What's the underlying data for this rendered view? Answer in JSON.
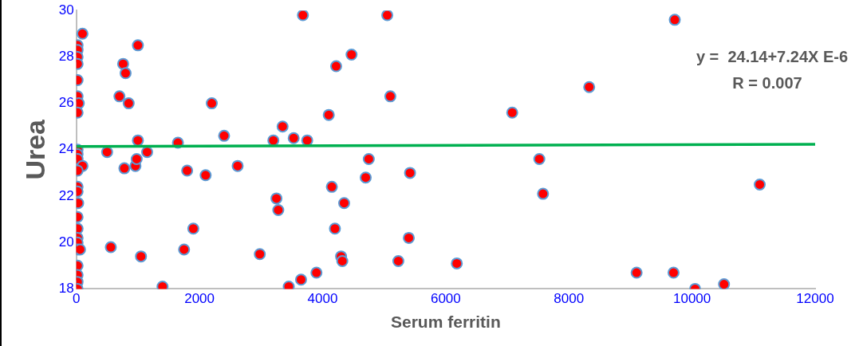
{
  "chart_data": {
    "type": "scatter",
    "xlabel": "Serum ferritin",
    "ylabel": "Urea",
    "xlim": [
      0,
      12000
    ],
    "ylim": [
      18,
      30
    ],
    "xticks": [
      0,
      2000,
      4000,
      6000,
      8000,
      10000,
      12000
    ],
    "yticks": [
      18,
      20,
      22,
      24,
      26,
      28,
      30
    ],
    "grid": false,
    "legend": false,
    "marker": "circle",
    "annotations": [
      "y =  24.14+7.24X E-6",
      "R = 0.007"
    ],
    "series": [
      {
        "color": "#ff0000",
        "x": [
          100,
          20,
          20,
          20,
          20,
          20,
          20,
          40,
          20,
          20,
          20,
          20,
          100,
          20,
          20,
          20,
          30,
          20,
          20,
          20,
          20,
          20,
          60,
          20,
          20,
          20,
          20,
          500,
          560,
          700,
          760,
          800,
          850,
          780,
          1000,
          960,
          980,
          1000,
          1050,
          1150,
          1400,
          1650,
          1750,
          1800,
          1900,
          2100,
          2200,
          2400,
          2620,
          2980,
          3200,
          3250,
          3280,
          3350,
          3450,
          3530,
          3650,
          3680,
          3750,
          3900,
          4100,
          4150,
          4200,
          4220,
          4300,
          4320,
          4350,
          4470,
          4700,
          4750,
          5050,
          5100,
          5230,
          5400,
          5420,
          6180,
          7080,
          7520,
          7580,
          8330,
          9100,
          9700,
          9720,
          10050,
          10520,
          11100
        ],
        "values": [
          29.0,
          28.5,
          28.3,
          28.0,
          27.7,
          27.0,
          26.3,
          26.0,
          25.6,
          24.0,
          23.8,
          23.6,
          23.3,
          23.1,
          22.4,
          22.2,
          21.7,
          21.1,
          20.6,
          20.2,
          20.0,
          19.7,
          19.7,
          19.0,
          18.6,
          18.3,
          18.0,
          23.9,
          19.8,
          26.3,
          27.7,
          27.3,
          26.0,
          23.2,
          28.5,
          23.3,
          23.6,
          24.4,
          19.4,
          23.9,
          18.1,
          24.3,
          19.7,
          23.1,
          20.6,
          22.9,
          26.0,
          24.6,
          23.3,
          19.5,
          24.4,
          21.9,
          21.4,
          25.0,
          18.1,
          24.5,
          18.4,
          29.8,
          24.4,
          18.7,
          25.5,
          22.4,
          20.6,
          27.6,
          19.4,
          19.2,
          21.7,
          28.1,
          22.8,
          23.6,
          29.8,
          26.3,
          19.2,
          20.2,
          23.0,
          19.1,
          25.6,
          23.6,
          22.1,
          26.7,
          18.7,
          18.7,
          29.6,
          18.0,
          18.2,
          22.5
        ]
      },
      {
        "type": "line",
        "color": "#00b050",
        "x": [
          0,
          12000
        ],
        "values": [
          24.14,
          24.23
        ],
        "marker": "none"
      }
    ]
  }
}
